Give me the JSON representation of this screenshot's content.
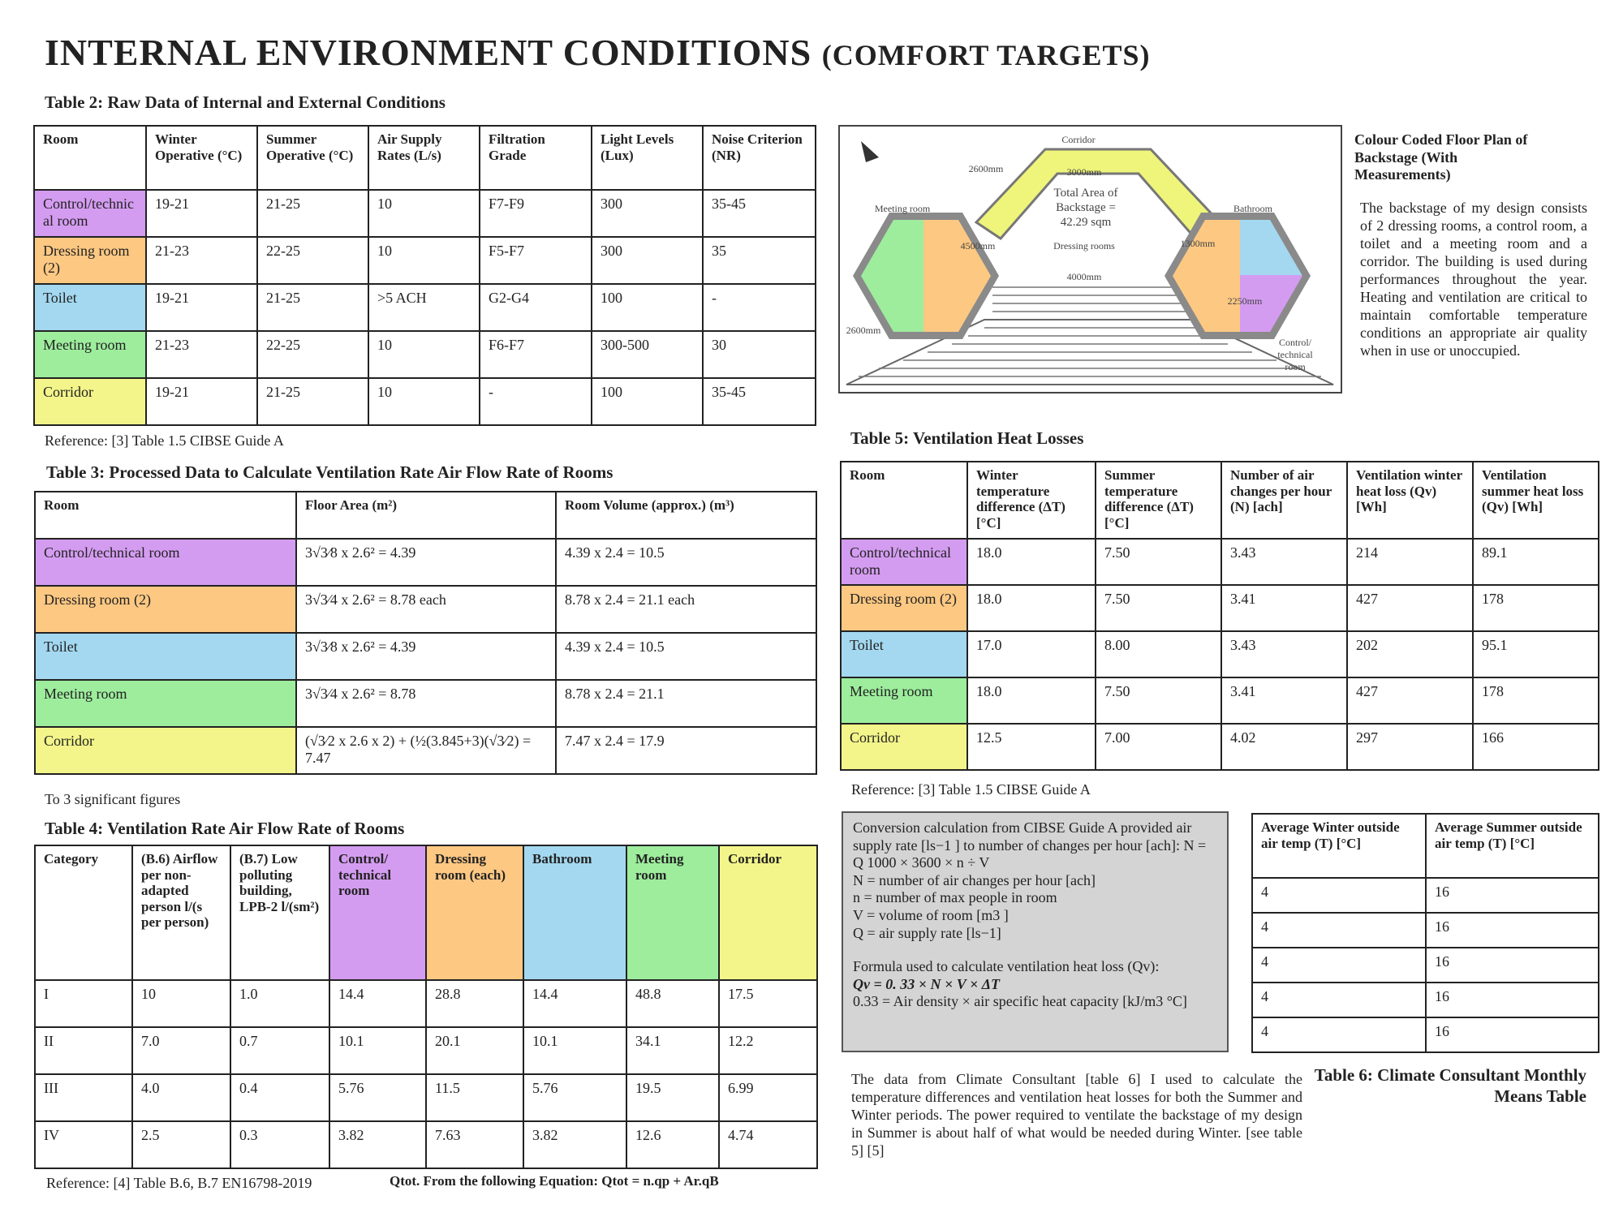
{
  "title": "INTERNAL ENVIRONMENT CONDITIONS",
  "title_suffix": "(COMFORT TARGETS)",
  "table2": {
    "title": "Table 2: Raw Data of Internal and External Conditions",
    "headers": [
      "Room",
      "Winter Operative (°C)",
      "Summer Operative (°C)",
      "Air Supply Rates (L/s)",
      "Filtration Grade",
      "Light Levels (Lux)",
      "Noise Criterion (NR)"
    ],
    "rows": [
      [
        "Control/technical room",
        "19-21",
        "21-25",
        "10",
        "F7-F9",
        "300",
        "35-45"
      ],
      [
        "Dressing room (2)",
        "21-23",
        "22-25",
        "10",
        "F5-F7",
        "300",
        "35"
      ],
      [
        "Toilet",
        "19-21",
        "21-25",
        ">5 ACH",
        "G2-G4",
        "100",
        "-"
      ],
      [
        "Meeting room",
        "21-23",
        "22-25",
        "10",
        "F6-F7",
        "300-500",
        "30"
      ],
      [
        "Corridor",
        "19-21",
        "21-25",
        "10",
        "-",
        "100",
        "35-45"
      ]
    ],
    "reference": "Reference: [3] Table 1.5 CIBSE Guide A"
  },
  "table3": {
    "title": "Table 3: Processed Data to Calculate Ventilation Rate Air Flow Rate of Rooms",
    "headers": [
      "Room",
      "Floor Area (m²)",
      "Room Volume (approx.) (m³)"
    ],
    "rows": [
      [
        "Control/technical room",
        "3√3⁄8 x 2.6² = 4.39",
        "4.39 x 2.4 = 10.5"
      ],
      [
        "Dressing room (2)",
        "3√3⁄4 x 2.6² = 8.78 each",
        "8.78 x 2.4 = 21.1 each"
      ],
      [
        "Toilet",
        "3√3⁄8 x 2.6² = 4.39",
        "4.39 x 2.4 = 10.5"
      ],
      [
        "Meeting room",
        "3√3⁄4 x 2.6² = 8.78",
        "8.78 x 2.4 = 21.1"
      ],
      [
        "Corridor",
        "(√3⁄2 x 2.6 x 2) + (½(3.845+3)(√3⁄2) = 7.47",
        "7.47 x 2.4 = 17.9"
      ]
    ],
    "note": "To 3 significant figures"
  },
  "table4": {
    "title": "Table 4: Ventilation Rate Air Flow Rate of Rooms",
    "headers": [
      "Category",
      "(B.6) Airflow per non-adapted person l/(s per person)",
      "(B.7) Low polluting building, LPB-2 l/(sm²)",
      "Control/ technical room",
      "Dressing room (each)",
      "Bathroom",
      "Meeting room",
      "Corridor"
    ],
    "rows": [
      [
        "I",
        "10",
        "1.0",
        "14.4",
        "28.8",
        "14.4",
        "48.8",
        "17.5"
      ],
      [
        "II",
        "7.0",
        "0.7",
        "10.1",
        "20.1",
        "10.1",
        "34.1",
        "12.2"
      ],
      [
        "III",
        "4.0",
        "0.4",
        "5.76",
        "11.5",
        "5.76",
        "19.5",
        "6.99"
      ],
      [
        "IV",
        "2.5",
        "0.3",
        "3.82",
        "7.63",
        "3.82",
        "12.6",
        "4.74"
      ]
    ],
    "reference": "Reference: [4] Table B.6, B.7 EN16798-2019",
    "equation": "Qtot. From the following Equation: Qtot = n.qp + Ar.qB"
  },
  "floor_plan": {
    "corridor": "Corridor",
    "dim_3000": "3000mm",
    "dim_2600_top": "2600mm",
    "total_area": [
      "Total Area of",
      "Backstage =",
      "42.29 sqm"
    ],
    "meeting_room": "Meeting room",
    "dim_4500": "4500mm",
    "dressing_rooms": "Dressing rooms",
    "bathroom": "Bathroom",
    "dim_1300": "1300mm",
    "dim_4000": "4000mm",
    "dim_2250": "2250mm",
    "dim_2600_side": "2600mm",
    "control_room": [
      "Control/",
      "technical",
      "room"
    ]
  },
  "caption": {
    "title": "Colour Coded Floor Plan of Backstage (With Measurements)",
    "body": "The backstage of my design consists of 2 dressing rooms, a control room, a toilet and a meeting room and a corridor. The building is used during performances throughout the year. Heating and ventilation are critical to maintain comfortable temperature conditions an appropriate air quality when in use or unoccupied."
  },
  "table5": {
    "title": "Table 5: Ventilation Heat Losses",
    "headers": [
      "Room",
      "Winter temperature difference (ΔT) [°C]",
      "Summer temperature difference (ΔT) [°C]",
      "Number of air changes per hour (N) [ach]",
      "Ventilation winter heat loss (Qv) [Wh]",
      "Ventilation summer heat loss (Qv) [Wh]"
    ],
    "rows": [
      [
        "Control/technical room",
        "18.0",
        "7.50",
        "3.43",
        "214",
        "89.1"
      ],
      [
        "Dressing room (2)",
        "18.0",
        "7.50",
        "3.41",
        "427",
        "178"
      ],
      [
        "Toilet",
        "17.0",
        "8.00",
        "3.43",
        "202",
        "95.1"
      ],
      [
        "Meeting room",
        "18.0",
        "7.50",
        "3.41",
        "427",
        "178"
      ],
      [
        "Corridor",
        "12.5",
        "7.00",
        "4.02",
        "297",
        "166"
      ]
    ],
    "reference": "Reference: [3] Table 1.5 CIBSE Guide A"
  },
  "conversion_box": {
    "lines": [
      "Conversion calculation from CIBSE Guide A provided air supply rate [ls−1 ] to number of changes per hour [ach]: N = Q 1000 × 3600 × n ÷ V",
      "N = number of air changes per hour [ach]",
      "n = number of max people in room",
      "V = volume of room [m3 ]",
      "Q = air supply rate [ls−1]",
      "Formula used to calculate ventilation heat loss (Qv):",
      "Qv = 0. 33 × N × V × ΔT",
      "0.33 = Air density × air specific heat capacity [kJ/m3 °C]"
    ]
  },
  "table6": {
    "headers": [
      "Average Winter outside air temp (T) [°C]",
      "Average Summer outside air temp (T) [°C]"
    ],
    "rows": [
      [
        "4",
        "16"
      ],
      [
        "4",
        "16"
      ],
      [
        "4",
        "16"
      ],
      [
        "4",
        "16"
      ],
      [
        "4",
        "16"
      ]
    ],
    "title": "Table 6: Climate Consultant Monthly Means Table"
  },
  "paragraph": "The data from Climate Consultant [table 6] I used to calculate the temperature differences and ventilation heat losses for both the Summer and Winter periods. The power required to ventilate the backstage of my design in Summer is about half of what would be needed during Winter. [see table 5] [5]"
}
